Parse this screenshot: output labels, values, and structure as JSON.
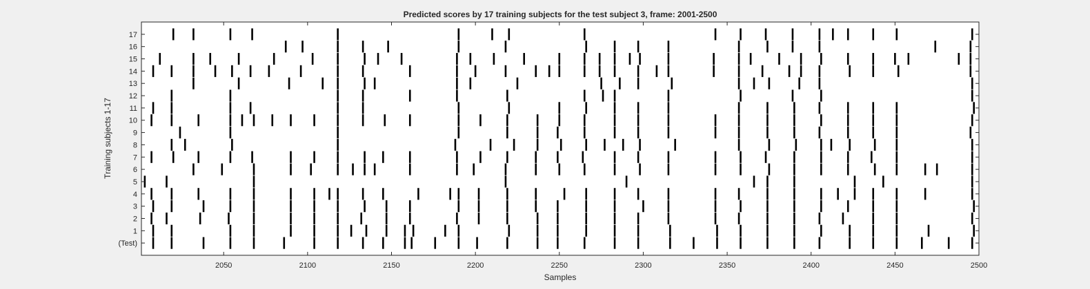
{
  "chart_data": {
    "type": "raster",
    "title": "Predicted scores by 17 training subjects for the test subject 3, frame: 2001-2500",
    "xlabel": "Samples",
    "ylabel": "Training subjects 1-17",
    "xlim": [
      2001,
      2500
    ],
    "x_ticks": [
      2050,
      2100,
      2150,
      2200,
      2250,
      2300,
      2350,
      2400,
      2450,
      2500
    ],
    "y_ticks": [
      "(Test)",
      "1",
      "2",
      "3",
      "4",
      "5",
      "6",
      "7",
      "8",
      "9",
      "10",
      "11",
      "12",
      "13",
      "14",
      "15",
      "16",
      "17"
    ],
    "colors": {
      "background": "#f0f0f0",
      "plot_area": "#ffffff",
      "event": "#000000",
      "axis": "#262626"
    },
    "series": [
      {
        "label": "(Test)",
        "x": [
          2008,
          2019,
          2038,
          2054,
          2068,
          2086,
          2104,
          2118,
          2133,
          2145,
          2158,
          2162,
          2176,
          2190,
          2201,
          2219,
          2237,
          2249,
          2265,
          2283,
          2297,
          2316,
          2330,
          2344,
          2358,
          2374,
          2390,
          2405,
          2423,
          2437,
          2451,
          2466,
          2482,
          2496
        ]
      },
      {
        "label": "1",
        "x": [
          2008,
          2019,
          2054,
          2068,
          2090,
          2104,
          2118,
          2126,
          2135,
          2147,
          2158,
          2163,
          2182,
          2190,
          2220,
          2237,
          2249,
          2266,
          2283,
          2297,
          2316,
          2344,
          2358,
          2374,
          2390,
          2406,
          2423,
          2437,
          2451,
          2470,
          2497
        ]
      },
      {
        "label": "2",
        "x": [
          2007,
          2016,
          2036,
          2053,
          2068,
          2090,
          2104,
          2118,
          2132,
          2147,
          2161,
          2189,
          2202,
          2219,
          2237,
          2249,
          2266,
          2283,
          2297,
          2315,
          2343,
          2357,
          2374,
          2390,
          2405,
          2419,
          2437,
          2451,
          2496
        ]
      },
      {
        "label": "3",
        "x": [
          2008,
          2019,
          2038,
          2054,
          2068,
          2090,
          2104,
          2118,
          2134,
          2147,
          2161,
          2190,
          2202,
          2219,
          2236,
          2249,
          2266,
          2283,
          2300,
          2315,
          2343,
          2358,
          2374,
          2390,
          2406,
          2422,
          2437,
          2451,
          2497
        ]
      },
      {
        "label": "4",
        "x": [
          2007,
          2019,
          2035,
          2054,
          2068,
          2090,
          2104,
          2113,
          2118,
          2133,
          2145,
          2166,
          2185,
          2190,
          2202,
          2219,
          2236,
          2253,
          2266,
          2283,
          2297,
          2315,
          2343,
          2357,
          2374,
          2390,
          2406,
          2416,
          2426,
          2437,
          2451,
          2468,
          2496
        ]
      },
      {
        "label": "5",
        "x": [
          2003,
          2016,
          2068,
          2218,
          2290,
          2366,
          2374,
          2390,
          2426,
          2443,
          2496
        ]
      },
      {
        "label": "6",
        "x": [
          2032,
          2049,
          2068,
          2090,
          2102,
          2118,
          2127,
          2134,
          2140,
          2161,
          2189,
          2199,
          2218,
          2236,
          2250,
          2265,
          2283,
          2298,
          2315,
          2343,
          2358,
          2375,
          2390,
          2406,
          2422,
          2438,
          2451,
          2468,
          2475,
          2496
        ]
      },
      {
        "label": "7",
        "x": [
          2007,
          2020,
          2035,
          2054,
          2067,
          2090,
          2104,
          2118,
          2134,
          2145,
          2161,
          2189,
          2203,
          2219,
          2236,
          2249,
          2264,
          2283,
          2297,
          2315,
          2343,
          2358,
          2373,
          2390,
          2406,
          2422,
          2436,
          2451,
          2496
        ]
      },
      {
        "label": "8",
        "x": [
          2019,
          2027,
          2055,
          2118,
          2188,
          2209,
          2223,
          2237,
          2251,
          2266,
          2277,
          2288,
          2298,
          2319,
          2357,
          2375,
          2391,
          2406,
          2412,
          2423,
          2438,
          2451,
          2496
        ]
      },
      {
        "label": "9",
        "x": [
          2024,
          2054,
          2118,
          2190,
          2219,
          2237,
          2249,
          2265,
          2283,
          2297,
          2315,
          2343,
          2357,
          2374,
          2390,
          2405,
          2422,
          2437,
          2451,
          2495
        ]
      },
      {
        "label": "10",
        "x": [
          2007,
          2019,
          2035,
          2054,
          2061,
          2068,
          2079,
          2090,
          2104,
          2118,
          2133,
          2146,
          2161,
          2190,
          2203,
          2219,
          2237,
          2250,
          2265,
          2283,
          2297,
          2315,
          2343,
          2357,
          2374,
          2390,
          2406,
          2422,
          2437,
          2451,
          2496
        ]
      },
      {
        "label": "11",
        "x": [
          2008,
          2019,
          2054,
          2066,
          2118,
          2133,
          2190,
          2220,
          2250,
          2266,
          2283,
          2297,
          2315,
          2357,
          2374,
          2390,
          2405,
          2422,
          2437,
          2451,
          2497
        ]
      },
      {
        "label": "12",
        "x": [
          2019,
          2054,
          2118,
          2133,
          2161,
          2189,
          2219,
          2265,
          2276,
          2283,
          2315,
          2358,
          2389,
          2406,
          2496
        ]
      },
      {
        "label": "13",
        "x": [
          2032,
          2059,
          2089,
          2109,
          2118,
          2134,
          2140,
          2189,
          2197,
          2225,
          2275,
          2286,
          2297,
          2317,
          2357,
          2366,
          2375,
          2393,
          2405,
          2496
        ]
      },
      {
        "label": "14",
        "x": [
          2008,
          2019,
          2032,
          2045,
          2055,
          2066,
          2077,
          2096,
          2118,
          2133,
          2161,
          2189,
          2200,
          2218,
          2236,
          2244,
          2250,
          2265,
          2274,
          2283,
          2297,
          2308,
          2315,
          2342,
          2357,
          2371,
          2387,
          2394,
          2405,
          2423,
          2437,
          2452,
          2495
        ]
      },
      {
        "label": "15",
        "x": [
          2012,
          2032,
          2042,
          2059,
          2080,
          2103,
          2118,
          2134,
          2142,
          2156,
          2189,
          2197,
          2211,
          2229,
          2250,
          2265,
          2274,
          2283,
          2292,
          2298,
          2315,
          2342,
          2357,
          2364,
          2381,
          2394,
          2406,
          2422,
          2437,
          2450,
          2458,
          2488,
          2495
        ]
      },
      {
        "label": "16",
        "x": [
          2087,
          2097,
          2118,
          2133,
          2148,
          2190,
          2218,
          2266,
          2283,
          2297,
          2315,
          2357,
          2374,
          2389,
          2405,
          2474,
          2495
        ]
      },
      {
        "label": "17",
        "x": [
          2020,
          2032,
          2054,
          2067,
          2118,
          2190,
          2210,
          2220,
          2265,
          2343,
          2358,
          2373,
          2389,
          2405,
          2413,
          2422,
          2437,
          2451,
          2496
        ]
      }
    ]
  }
}
